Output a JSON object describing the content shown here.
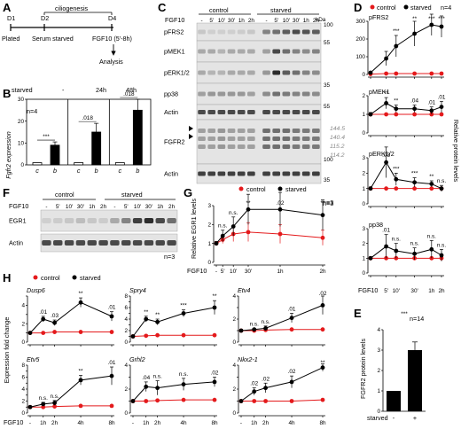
{
  "panel_letters": [
    "A",
    "B",
    "C",
    "D",
    "E",
    "F",
    "G",
    "H"
  ],
  "panel_a": {
    "bracket_label": "ciliogenesis",
    "days": [
      "D1",
      "D2",
      "D4"
    ],
    "steps": [
      "Plated",
      "Serum starved",
      "FGF10 (5'-8h)"
    ],
    "outcome": "Analysis"
  },
  "panel_b": {
    "ylabel": "Fgfr2 expression",
    "group_header_label": "starved",
    "groups": [
      "-",
      "24h",
      "48h"
    ],
    "bar_labels": [
      "c",
      "b"
    ],
    "n_label": "n=4",
    "annotations": [
      "***",
      ".018",
      ".018"
    ],
    "ytick_labels": [
      "0",
      "10",
      "20",
      "30"
    ]
  },
  "panel_c": {
    "treatment_label": "FGF10",
    "group_labels": [
      "control",
      "starved"
    ],
    "lane_labels": [
      "-",
      "5'",
      "10'",
      "30'",
      "1h",
      "2h",
      "-",
      "5'",
      "10'",
      "30'",
      "1h",
      "2h"
    ],
    "row_labels": [
      "pFRS2",
      "pMEK1",
      "pERK1/2",
      "pp38",
      "Actin",
      "FGFR2",
      "Actin"
    ],
    "mw_unit": "kDa",
    "mw_markers": [
      "100",
      "55",
      "35",
      "55",
      "100",
      "35"
    ],
    "band_sizes": [
      "144.5",
      "140.4",
      "115.2",
      "114.2"
    ],
    "n_label": "n=3"
  },
  "panel_d": {
    "legend": [
      "control",
      "starved"
    ],
    "n_label": "n=4",
    "ylabel": "Relative protein levels",
    "xlabel": "FGF10",
    "xtick_labels": [
      "-",
      "5'",
      "10'",
      "30'",
      "1h",
      "2h"
    ],
    "subplots": [
      {
        "name": "pFRS2",
        "ytick_labels": [
          "0",
          "100",
          "200",
          "300"
        ],
        "annotations": [
          "***",
          "**",
          "***",
          "***"
        ]
      },
      {
        "name": "pMEK1",
        "ytick_labels": [
          "0",
          "1",
          "2"
        ],
        "annotations": [
          "**",
          "**",
          ".04",
          ".01",
          ".01"
        ]
      },
      {
        "name": "pERK1/2",
        "ytick_labels": [
          "0",
          "1",
          "2",
          "3"
        ],
        "annotations": [
          ".03",
          "***",
          "***",
          "**",
          "n.s."
        ]
      },
      {
        "name": "pp38",
        "ytick_labels": [
          "0",
          "1",
          "2",
          "3"
        ],
        "annotations": [
          ".01",
          "n.s.",
          "n.s.",
          "n.s.",
          "n.s."
        ]
      }
    ]
  },
  "panel_e": {
    "ylabel": "FGFR2 protein levels",
    "xlabel": "starved",
    "categories": [
      "-",
      "+"
    ],
    "n_label": "n=14",
    "annotation": "***",
    "ytick_labels": [
      "0",
      "1",
      "2",
      "3",
      "4"
    ]
  },
  "panel_f": {
    "treatment_label": "FGF10",
    "group_labels": [
      "control",
      "starved"
    ],
    "lane_labels": [
      "-",
      "5'",
      "10'",
      "30'",
      "1h",
      "2h",
      "-",
      "5'",
      "10'",
      "30'",
      "1h",
      "2h"
    ],
    "row_labels": [
      "EGR1",
      "Actin"
    ],
    "n_label": "n=3"
  },
  "panel_g": {
    "legend": [
      "control",
      "starved"
    ],
    "n_label": "n=3",
    "ylabel": "Relative EGR1 levels",
    "xlabel": "FGF10",
    "xtick_labels": [
      "-",
      "5'",
      "10'",
      "30'",
      "1h",
      "2h"
    ],
    "ytick_labels": [
      "0",
      "1",
      "2",
      "3"
    ],
    "annotations": [
      "n.s.",
      "n.s.",
      "**",
      ".02",
      "**"
    ]
  },
  "panel_h": {
    "legend": [
      "control",
      "starved"
    ],
    "ylabel": "Expression fold change",
    "xlabel": "FGF10",
    "xtick_labels": [
      "-",
      "1h",
      "2h",
      "4h",
      "8h"
    ],
    "subplots": [
      {
        "name": "Dusp6",
        "ytick_labels": [
          "0",
          "1",
          "2",
          "3",
          "4",
          "5"
        ],
        "annotations": [
          ".01",
          ".03",
          "**",
          ".01"
        ]
      },
      {
        "name": "Spry4",
        "ytick_labels": [
          "0",
          "1",
          "2",
          "3",
          "4",
          "5",
          "6",
          "7",
          "8"
        ],
        "annotations": [
          "**",
          "**",
          "***",
          "**"
        ]
      },
      {
        "name": "Etv4",
        "ytick_labels": [
          "0",
          "1",
          "2",
          "3",
          "4"
        ],
        "annotations": [
          "n.s.",
          "n.s.",
          ".01",
          ".02"
        ]
      },
      {
        "name": "Etv5",
        "ytick_labels": [
          "0",
          "1",
          "2",
          "3",
          "4",
          "5",
          "6",
          "7",
          "8"
        ],
        "annotations": [
          "n.s.",
          "n.s.",
          "**",
          ".01"
        ]
      },
      {
        "name": "Grhl2",
        "ytick_labels": [
          "0",
          "1",
          "2",
          "3",
          "4"
        ],
        "annotations": [
          ".04",
          "n.s.",
          "n.s.",
          ".02"
        ]
      },
      {
        "name": "Nkx2-1",
        "ytick_labels": [
          "0",
          "1",
          "2",
          "3",
          "4"
        ],
        "annotations": [
          ".02",
          ".02",
          ".02",
          "**"
        ]
      }
    ]
  },
  "colors": {
    "control": "#e41a1c",
    "starved": "#000000",
    "band": "#222222"
  },
  "chart_data": [
    {
      "type": "bar",
      "panel": "B",
      "categories": [
        "- c",
        "- b",
        "24h c",
        "24h b",
        "48h c",
        "48h b"
      ],
      "values": [
        1,
        9,
        1,
        15,
        1,
        25
      ],
      "errors": [
        0,
        1.5,
        0,
        4,
        0,
        5
      ],
      "ylabel": "Fgfr2 expression",
      "ylim": [
        0,
        30
      ]
    },
    {
      "type": "line",
      "panel": "D",
      "subplot": "pFRS2",
      "x": [
        "-",
        "5'",
        "10'",
        "30'",
        "1h",
        "2h"
      ],
      "ylim": [
        0,
        300
      ],
      "series": [
        {
          "name": "control",
          "values": [
            2,
            5,
            5,
            5,
            5,
            5
          ],
          "errors": [
            1,
            2,
            2,
            2,
            2,
            2
          ]
        },
        {
          "name": "starved",
          "values": [
            10,
            90,
            160,
            230,
            280,
            270
          ],
          "errors": [
            5,
            40,
            60,
            70,
            60,
            60
          ]
        }
      ]
    },
    {
      "type": "line",
      "panel": "D",
      "subplot": "pMEK1",
      "x": [
        "-",
        "5'",
        "10'",
        "30'",
        "1h",
        "2h"
      ],
      "ylim": [
        0,
        2
      ],
      "series": [
        {
          "name": "control",
          "values": [
            1,
            1,
            1,
            1,
            1,
            1
          ],
          "errors": [
            0.05,
            0.05,
            0.05,
            0.05,
            0.05,
            0.05
          ]
        },
        {
          "name": "starved",
          "values": [
            1,
            1.6,
            1.3,
            1.3,
            1.2,
            1.4
          ],
          "errors": [
            0.1,
            0.3,
            0.2,
            0.2,
            0.2,
            0.3
          ]
        }
      ]
    },
    {
      "type": "line",
      "panel": "D",
      "subplot": "pERK1/2",
      "x": [
        "-",
        "5'",
        "10'",
        "30'",
        "1h",
        "2h"
      ],
      "ylim": [
        0,
        3
      ],
      "series": [
        {
          "name": "control",
          "values": [
            1,
            1,
            1,
            1,
            1,
            1
          ],
          "errors": [
            0.05,
            0.05,
            0.05,
            0.05,
            0.05,
            0.05
          ]
        },
        {
          "name": "starved",
          "values": [
            1,
            2.7,
            1.6,
            1.4,
            1.3,
            1.0
          ],
          "errors": [
            0.1,
            1.0,
            0.4,
            0.3,
            0.2,
            0.2
          ]
        }
      ]
    },
    {
      "type": "line",
      "panel": "D",
      "subplot": "pp38",
      "x": [
        "-",
        "5'",
        "10'",
        "30'",
        "1h",
        "2h"
      ],
      "ylim": [
        0,
        3
      ],
      "series": [
        {
          "name": "control",
          "values": [
            1,
            1,
            1,
            1,
            1,
            1
          ],
          "errors": [
            0.05,
            0.05,
            0.05,
            0.05,
            0.05,
            0.05
          ]
        },
        {
          "name": "starved",
          "values": [
            1,
            1.8,
            1.5,
            1.3,
            1.6,
            1.2
          ],
          "errors": [
            0.1,
            0.8,
            0.5,
            0.4,
            0.6,
            0.4
          ]
        }
      ]
    },
    {
      "type": "bar",
      "panel": "E",
      "categories": [
        "-",
        "+"
      ],
      "values": [
        1,
        3
      ],
      "errors": [
        0,
        0.4
      ],
      "ylabel": "FGFR2 protein levels",
      "ylim": [
        0,
        4
      ]
    },
    {
      "type": "line",
      "panel": "G",
      "x": [
        "-",
        "5'",
        "10'",
        "30'",
        "1h",
        "2h"
      ],
      "ylim": [
        0,
        3
      ],
      "ylabel": "Relative EGR1 levels",
      "series": [
        {
          "name": "control",
          "values": [
            1,
            1.2,
            1.5,
            1.6,
            1.5,
            1.3
          ],
          "errors": [
            0.1,
            0.2,
            0.4,
            0.5,
            0.5,
            0.4
          ]
        },
        {
          "name": "starved",
          "values": [
            1,
            1.4,
            1.9,
            2.8,
            2.8,
            2.5
          ],
          "errors": [
            0.1,
            0.3,
            0.5,
            0.8,
            0.9,
            0.8
          ]
        }
      ]
    },
    {
      "type": "line",
      "panel": "H",
      "subplot": "Dusp6",
      "x": [
        "-",
        "1h",
        "2h",
        "4h",
        "8h"
      ],
      "ylim": [
        0,
        5
      ],
      "series": [
        {
          "name": "control",
          "values": [
            1,
            1,
            1.1,
            1.1,
            1.1
          ],
          "errors": [
            0.05,
            0.05,
            0.05,
            0.05,
            0.05
          ]
        },
        {
          "name": "starved",
          "values": [
            1,
            2.5,
            2.1,
            4.3,
            2.8
          ],
          "errors": [
            0.1,
            0.3,
            0.3,
            0.5,
            0.5
          ]
        }
      ]
    },
    {
      "type": "line",
      "panel": "H",
      "subplot": "Spry4",
      "x": [
        "-",
        "1h",
        "2h",
        "4h",
        "8h"
      ],
      "ylim": [
        0,
        8
      ],
      "series": [
        {
          "name": "control",
          "values": [
            1,
            1.1,
            1.2,
            1.2,
            1.2
          ],
          "errors": [
            0.05,
            0.05,
            0.05,
            0.05,
            0.05
          ]
        },
        {
          "name": "starved",
          "values": [
            1,
            4,
            3.5,
            5,
            6
          ],
          "errors": [
            0.2,
            0.5,
            0.5,
            0.6,
            1.2
          ]
        }
      ]
    },
    {
      "type": "line",
      "panel": "H",
      "subplot": "Etv4",
      "x": [
        "-",
        "1h",
        "2h",
        "4h",
        "8h"
      ],
      "ylim": [
        0,
        4
      ],
      "series": [
        {
          "name": "control",
          "values": [
            1,
            1,
            1.05,
            1.1,
            1.1
          ],
          "errors": [
            0.05,
            0.05,
            0.05,
            0.05,
            0.05
          ]
        },
        {
          "name": "starved",
          "values": [
            1,
            1.1,
            1.2,
            2.1,
            3.2
          ],
          "errors": [
            0.1,
            0.1,
            0.2,
            0.4,
            0.8
          ]
        }
      ]
    },
    {
      "type": "line",
      "panel": "H",
      "subplot": "Etv5",
      "x": [
        "-",
        "1h",
        "2h",
        "4h",
        "8h"
      ],
      "ylim": [
        0,
        8
      ],
      "series": [
        {
          "name": "control",
          "values": [
            1,
            1,
            1.1,
            1.2,
            1.2
          ],
          "errors": [
            0.05,
            0.05,
            0.05,
            0.05,
            0.05
          ]
        },
        {
          "name": "starved",
          "values": [
            1,
            1.5,
            1.7,
            5.5,
            6.2
          ],
          "errors": [
            0.2,
            0.3,
            0.4,
            0.8,
            1.5
          ]
        }
      ]
    },
    {
      "type": "line",
      "panel": "H",
      "subplot": "Grhl2",
      "x": [
        "-",
        "1h",
        "2h",
        "4h",
        "8h"
      ],
      "ylim": [
        0,
        4
      ],
      "series": [
        {
          "name": "control",
          "values": [
            1,
            1,
            1.05,
            1.1,
            1.1
          ],
          "errors": [
            0.05,
            0.05,
            0.05,
            0.05,
            0.05
          ]
        },
        {
          "name": "starved",
          "values": [
            1,
            2.2,
            2.1,
            2.4,
            2.6
          ],
          "errors": [
            0.1,
            0.4,
            0.6,
            0.5,
            0.4
          ]
        }
      ]
    },
    {
      "type": "line",
      "panel": "H",
      "subplot": "Nkx2-1",
      "x": [
        "-",
        "1h",
        "2h",
        "4h",
        "8h"
      ],
      "ylim": [
        0,
        4
      ],
      "series": [
        {
          "name": "control",
          "values": [
            1,
            1,
            1.0,
            1.0,
            1.1
          ],
          "errors": [
            0.05,
            0.05,
            0.05,
            0.05,
            0.1
          ]
        },
        {
          "name": "starved",
          "values": [
            1,
            1.8,
            2.1,
            2.6,
            3.8
          ],
          "errors": [
            0.1,
            0.3,
            0.4,
            0.5,
            0.3
          ]
        }
      ]
    }
  ]
}
